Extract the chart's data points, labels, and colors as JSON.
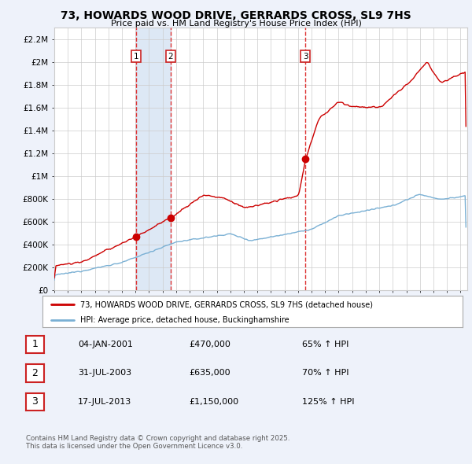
{
  "title": "73, HOWARDS WOOD DRIVE, GERRARDS CROSS, SL9 7HS",
  "subtitle": "Price paid vs. HM Land Registry's House Price Index (HPI)",
  "ylim": [
    0,
    2300000
  ],
  "yticks": [
    0,
    200000,
    400000,
    600000,
    800000,
    1000000,
    1200000,
    1400000,
    1600000,
    1800000,
    2000000,
    2200000
  ],
  "ytick_labels": [
    "£0",
    "£200K",
    "£400K",
    "£600K",
    "£800K",
    "£1M",
    "£1.2M",
    "£1.4M",
    "£1.6M",
    "£1.8M",
    "£2M",
    "£2.2M"
  ],
  "background_color": "#eef2fa",
  "plot_bg_color": "#ffffff",
  "grid_color": "#cccccc",
  "red_line_color": "#cc0000",
  "blue_line_color": "#7ab0d4",
  "vline_color": "#dd3333",
  "shade_color": "#dde8f5",
  "sale1_date": 2001.04,
  "sale1_price": 470000,
  "sale2_date": 2003.58,
  "sale2_price": 635000,
  "sale3_date": 2013.54,
  "sale3_price": 1150000,
  "legend_label_red": "73, HOWARDS WOOD DRIVE, GERRARDS CROSS, SL9 7HS (detached house)",
  "legend_label_blue": "HPI: Average price, detached house, Buckinghamshire",
  "table_entries": [
    {
      "num": "1",
      "date": "04-JAN-2001",
      "price": "£470,000",
      "hpi": "65% ↑ HPI"
    },
    {
      "num": "2",
      "date": "31-JUL-2003",
      "price": "£635,000",
      "hpi": "70% ↑ HPI"
    },
    {
      "num": "3",
      "date": "17-JUL-2013",
      "price": "£1,150,000",
      "hpi": "125% ↑ HPI"
    }
  ],
  "footnote1": "Contains HM Land Registry data © Crown copyright and database right 2025.",
  "footnote2": "This data is licensed under the Open Government Licence v3.0.",
  "xlim_start": 1995.0,
  "xlim_end": 2025.5,
  "xticks": [
    1995,
    1996,
    1997,
    1998,
    1999,
    2000,
    2001,
    2002,
    2003,
    2004,
    2005,
    2006,
    2007,
    2008,
    2009,
    2010,
    2011,
    2012,
    2013,
    2014,
    2015,
    2016,
    2017,
    2018,
    2019,
    2020,
    2021,
    2022,
    2023,
    2024,
    2025
  ]
}
